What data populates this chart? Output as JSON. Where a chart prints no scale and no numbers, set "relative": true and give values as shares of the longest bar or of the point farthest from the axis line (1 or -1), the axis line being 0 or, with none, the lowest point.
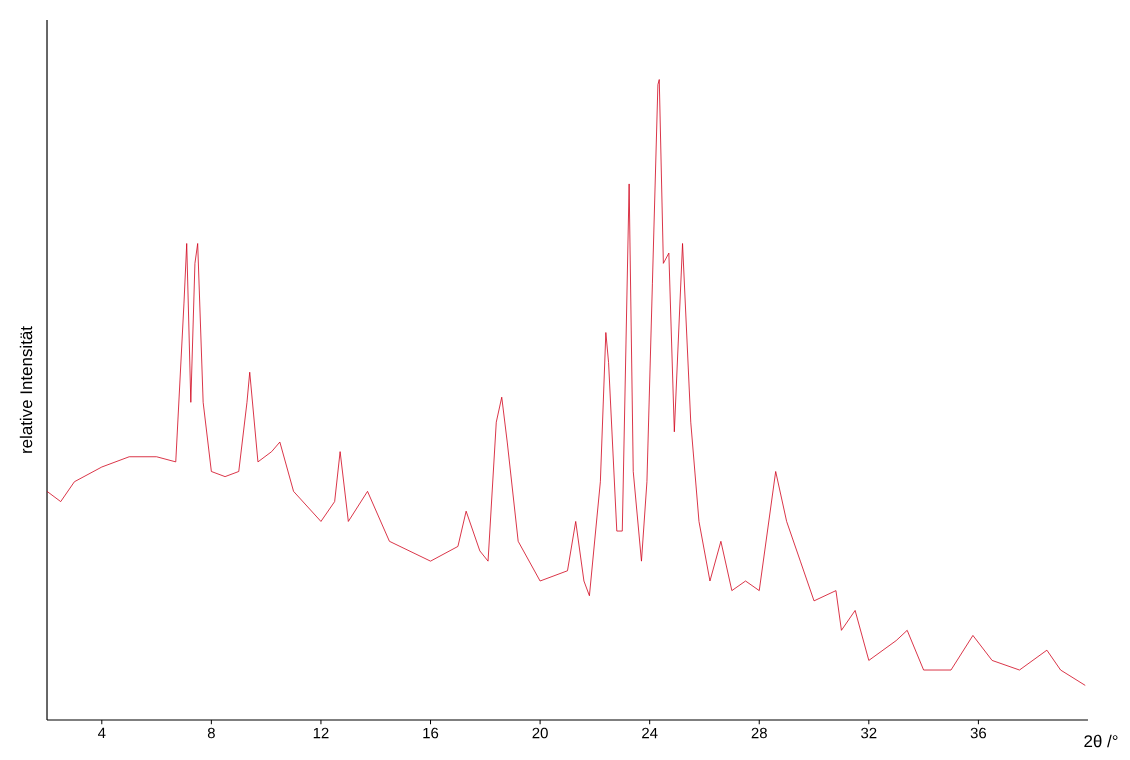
{
  "chart_data": {
    "type": "line",
    "relative": true,
    "xlabel": "2θ /°",
    "ylabel": "relative Intensität",
    "xlim": [
      2,
      40
    ],
    "xticks": [
      4,
      8,
      12,
      16,
      20,
      24,
      28,
      32,
      36
    ],
    "tick_labels": "x",
    "series": [
      {
        "color": "#d0021b",
        "x": [
          2.0,
          2.5,
          3,
          4,
          5,
          6,
          6.7,
          7.0,
          7.1,
          7.25,
          7.4,
          7.5,
          7.7,
          8,
          8.5,
          9,
          9.3,
          9.4,
          9.7,
          10.2,
          10.5,
          11,
          12,
          12.5,
          12.7,
          13,
          13.7,
          14.5,
          16,
          17,
          17.3,
          17.8,
          18.1,
          18.4,
          18.6,
          18.8,
          19.2,
          20,
          21,
          21.3,
          21.6,
          21.8,
          22.2,
          22.4,
          22.5,
          22.8,
          23.0,
          23.25,
          23.4,
          23.7,
          23.9,
          24.1,
          24.3,
          24.35,
          24.5,
          24.7,
          24.9,
          25.2,
          25.5,
          25.8,
          26.2,
          26.6,
          27,
          27.5,
          28,
          28.6,
          29,
          29.5,
          30,
          30.8,
          31,
          31.5,
          32,
          33,
          33.4,
          34,
          35,
          35.8,
          36.5,
          37.5,
          38.5,
          39,
          39.9
        ],
        "values": [
          0.357,
          0.341,
          0.372,
          0.395,
          0.411,
          0.411,
          0.403,
          0.651,
          0.744,
          0.496,
          0.713,
          0.744,
          0.496,
          0.388,
          0.38,
          0.388,
          0.496,
          0.543,
          0.403,
          0.419,
          0.434,
          0.357,
          0.31,
          0.341,
          0.419,
          0.31,
          0.357,
          0.279,
          0.248,
          0.271,
          0.326,
          0.264,
          0.248,
          0.465,
          0.504,
          0.434,
          0.279,
          0.217,
          0.233,
          0.31,
          0.217,
          0.194,
          0.372,
          0.605,
          0.558,
          0.295,
          0.295,
          0.837,
          0.388,
          0.248,
          0.372,
          0.682,
          0.992,
          1,
          0.713,
          0.729,
          0.45,
          0.744,
          0.465,
          0.31,
          0.217,
          0.279,
          0.202,
          0.217,
          0.202,
          0.388,
          0.31,
          0.248,
          0.186,
          0.202,
          0.14,
          0.171,
          0.093,
          0.124,
          0.14,
          0.078,
          0.078,
          0.132,
          0.093,
          0.078,
          0.109,
          0.078,
          0.054
        ]
      }
    ]
  }
}
